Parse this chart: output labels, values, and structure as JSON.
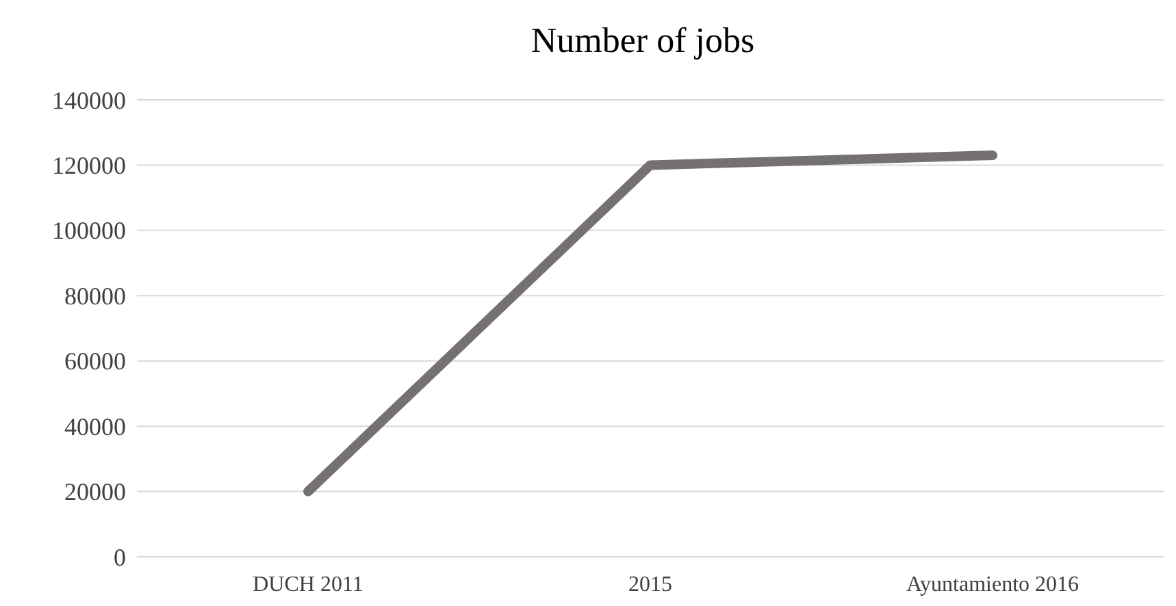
{
  "chart_data": {
    "type": "line",
    "title": "Number of jobs",
    "categories": [
      "DUCH 2011",
      "2015",
      "Ayuntamiento 2016"
    ],
    "series": [
      {
        "color": "#767171",
        "values": [
          20000,
          120000,
          123000
        ]
      }
    ],
    "ylim": [
      0,
      140000
    ],
    "yticks": [
      0,
      20000,
      40000,
      60000,
      80000,
      100000,
      120000,
      140000
    ],
    "grid": "y",
    "marker": "none",
    "line_style": "solid"
  }
}
